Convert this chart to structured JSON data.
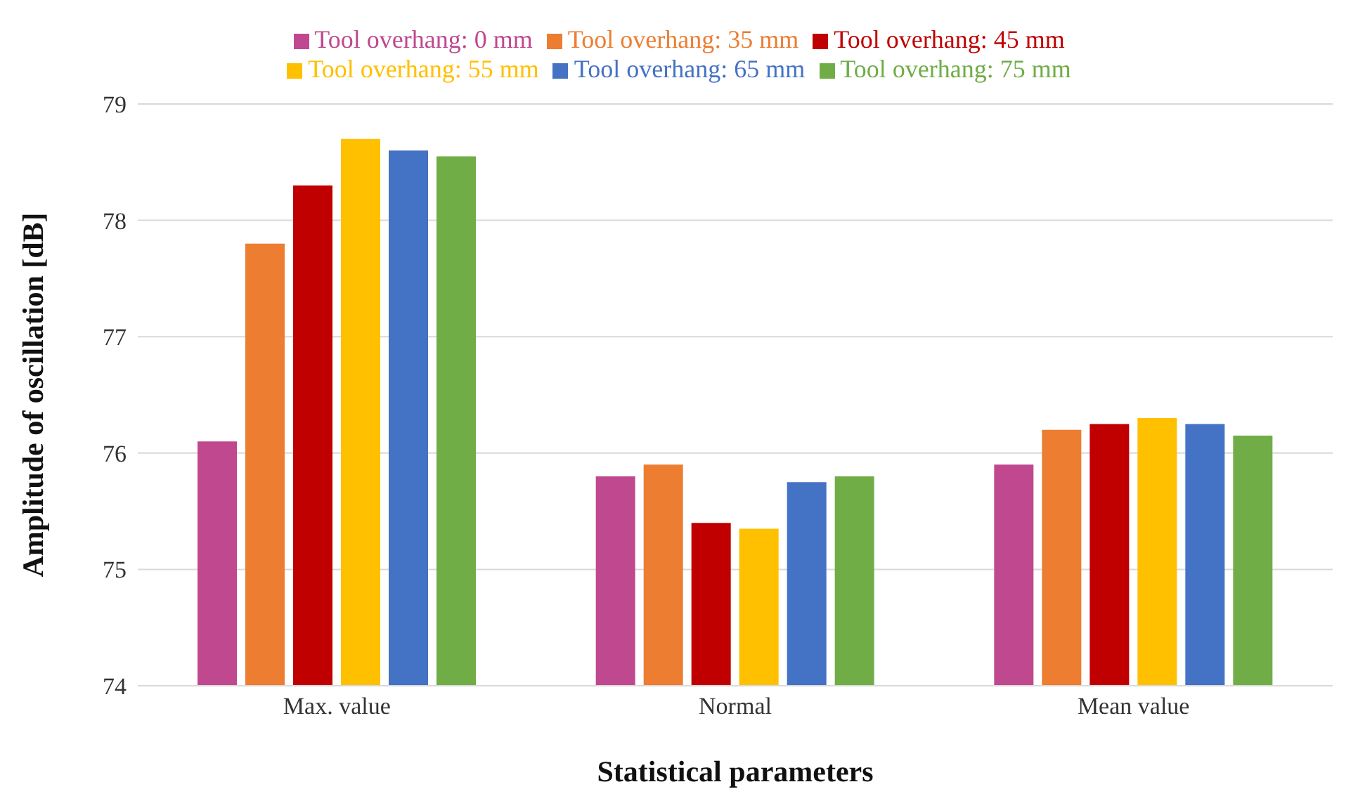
{
  "chart_data": {
    "type": "bar",
    "xlabel": "Statistical parameters",
    "ylabel": "Amplitude of oscillation [dB]",
    "categories": [
      "Max. value",
      "Normal",
      "Mean value"
    ],
    "series": [
      {
        "name": "Tool overhang: 0 mm",
        "color": "#c0488f",
        "values": [
          76.1,
          75.8,
          75.9
        ]
      },
      {
        "name": "Tool overhang: 35 mm",
        "color": "#ed7d31",
        "values": [
          77.8,
          75.9,
          76.2
        ]
      },
      {
        "name": "Tool overhang: 45 mm",
        "color": "#c00000",
        "values": [
          78.3,
          75.4,
          76.25
        ]
      },
      {
        "name": "Tool overhang: 55 mm",
        "color": "#ffc000",
        "values": [
          78.7,
          75.35,
          76.3
        ]
      },
      {
        "name": "Tool overhang: 65 mm",
        "color": "#4472c4",
        "values": [
          78.6,
          75.75,
          76.25
        ]
      },
      {
        "name": "Tool overhang: 75 mm",
        "color": "#70ad47",
        "values": [
          78.55,
          75.8,
          76.15
        ]
      }
    ],
    "ylim": [
      74,
      79
    ],
    "yticks": [
      74,
      75,
      76,
      77,
      78,
      79
    ],
    "grid": "y",
    "legend": "top"
  }
}
